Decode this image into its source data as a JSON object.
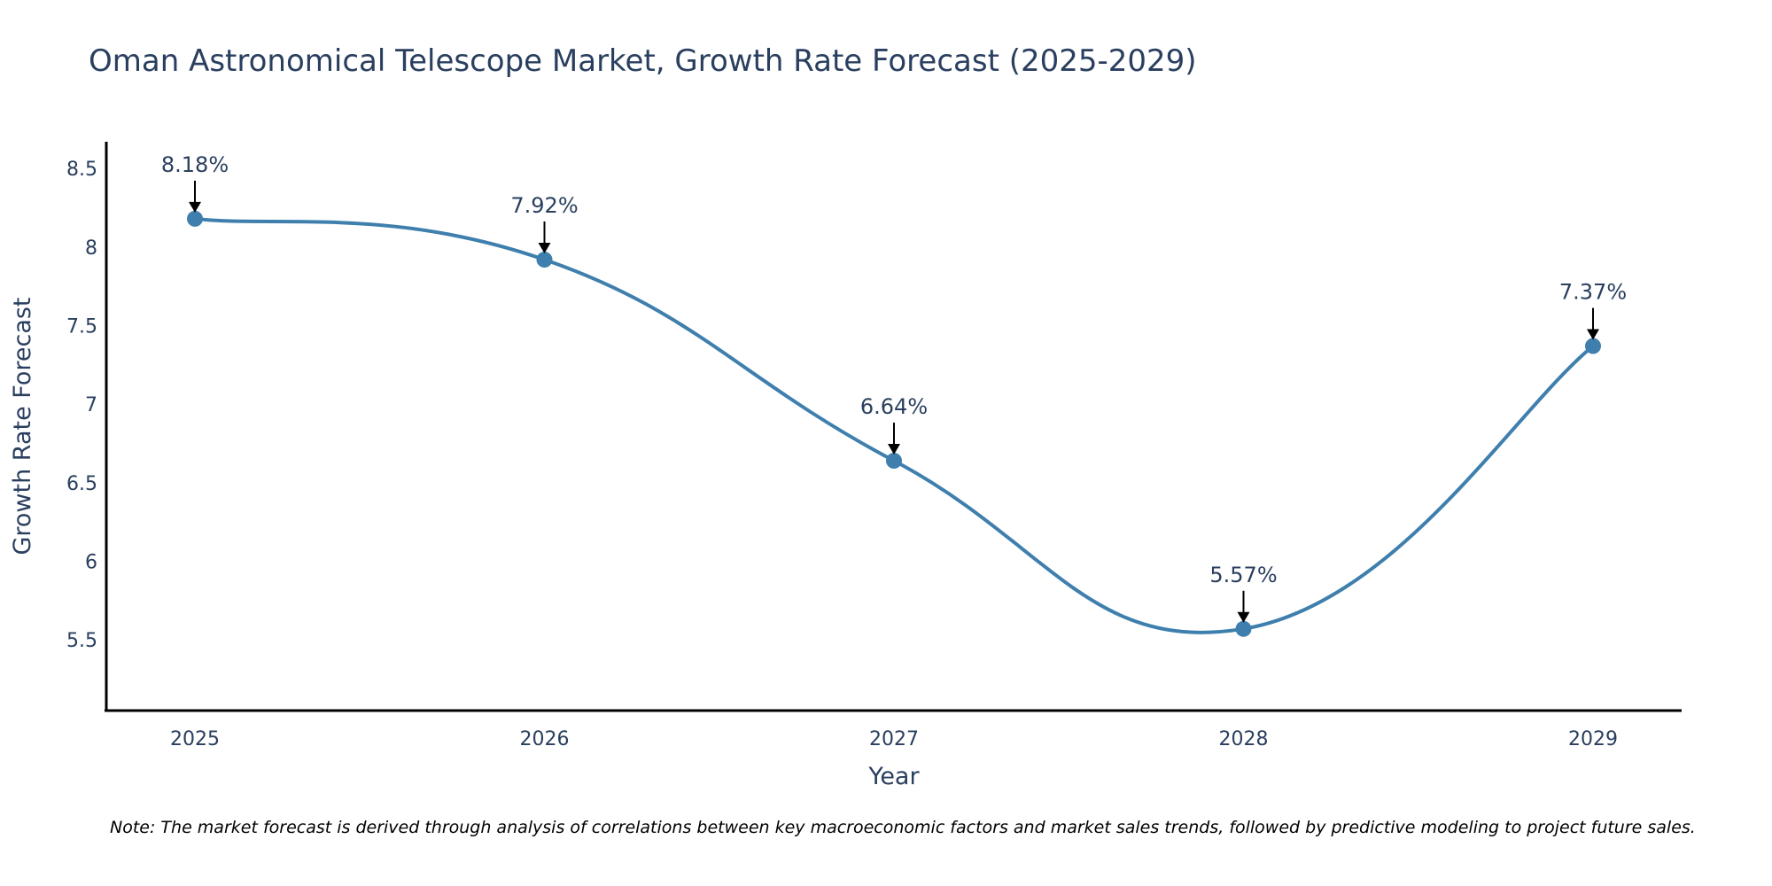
{
  "chart_data": {
    "type": "line",
    "title": "Oman Astronomical Telescope Market, Growth Rate Forecast (2025-2029)",
    "xlabel": "Year",
    "ylabel": "Growth Rate Forecast",
    "categories": [
      "2025",
      "2026",
      "2027",
      "2028",
      "2029"
    ],
    "series": [
      {
        "name": "Growth Rate Forecast",
        "values": [
          8.18,
          7.92,
          6.64,
          5.57,
          7.37
        ]
      }
    ],
    "data_labels": [
      "8.18%",
      "7.92%",
      "6.64%",
      "5.57%",
      "7.37%"
    ],
    "ylim": [
      5.05,
      8.67
    ],
    "yticks": [
      5.5,
      6,
      6.5,
      7,
      7.5,
      8,
      8.5
    ],
    "ytick_labels": [
      "5.5",
      "6",
      "6.5",
      "7",
      "7.5",
      "8",
      "8.5"
    ],
    "grid": false,
    "legend": "none",
    "line_shape": "spline",
    "note": "Note: The market forecast is derived through analysis of correlations between key macroeconomic factors and market sales trends, followed by predictive modeling to project future sales."
  },
  "colors": {
    "line": "#3f7fad",
    "marker": "#3f7fad",
    "axis": "#000000",
    "text": "#2a3f5f",
    "arrow": "#000000"
  }
}
